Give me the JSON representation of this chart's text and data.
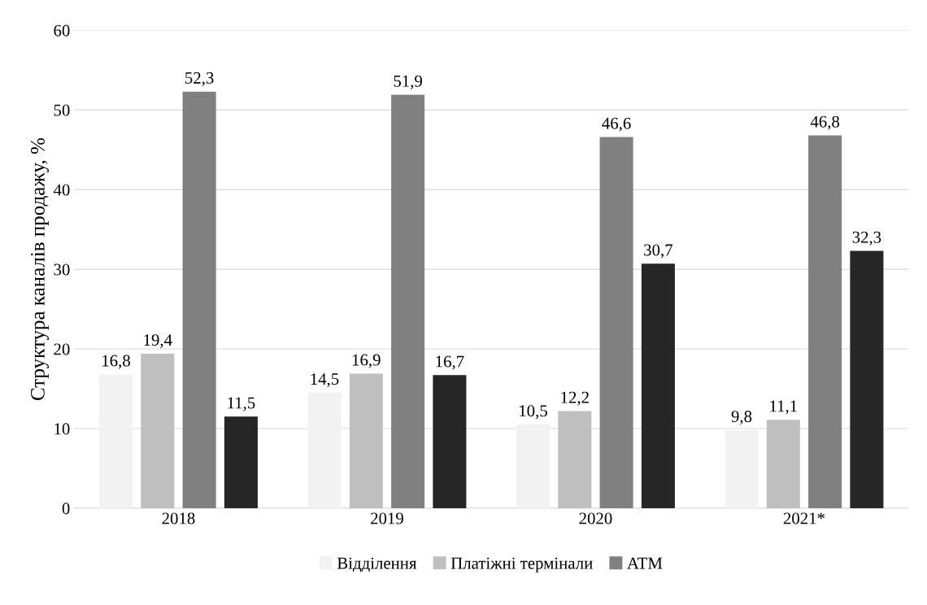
{
  "chart_data": {
    "type": "bar",
    "ylabel": "Структура каналів продажу, %",
    "categories": [
      "2018",
      "2019",
      "2020",
      "2021*"
    ],
    "series": [
      {
        "name": "Відділення",
        "color": "#f2f2f2",
        "values": [
          16.8,
          14.5,
          10.5,
          9.8
        ],
        "value_labels": [
          "16,8",
          "14,5",
          "10,5",
          "9,8"
        ]
      },
      {
        "name": "Платіжні термінали",
        "color": "#bfbfbf",
        "values": [
          19.4,
          16.9,
          12.2,
          11.1
        ],
        "value_labels": [
          "19,4",
          "16,9",
          "12,2",
          "11,1"
        ]
      },
      {
        "name": "ATM",
        "color": "#808080",
        "values": [
          52.3,
          51.9,
          46.6,
          46.8
        ],
        "value_labels": [
          "52,3",
          "51,9",
          "46,6",
          "46,8"
        ]
      },
      {
        "color": "#262626",
        "values": [
          11.5,
          16.7,
          30.7,
          32.3
        ],
        "value_labels": [
          "11,5",
          "16,7",
          "30,7",
          "32,3"
        ]
      }
    ],
    "ylim": [
      0,
      60
    ],
    "yticks": [
      0,
      10,
      20,
      30,
      40,
      50,
      60
    ],
    "grid": "y",
    "legend": "bottom"
  }
}
